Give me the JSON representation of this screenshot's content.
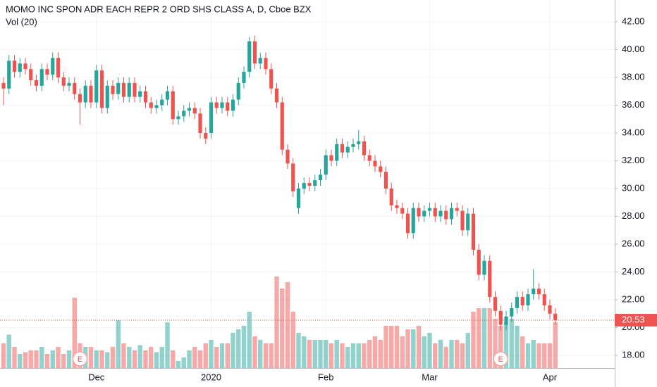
{
  "chart_data": {
    "type": "candlestick",
    "title": "MOMO INC SPON ADR EACH REPR 2 ORD SHS CLASS A, D, Cboe BZX",
    "subtitle": "Vol (20)",
    "categories": [
      null,
      null,
      null,
      null,
      null,
      null,
      null,
      null,
      null,
      null,
      null,
      null,
      null,
      null,
      null,
      null,
      null,
      "Dec",
      null,
      null,
      null,
      null,
      null,
      null,
      null,
      null,
      null,
      null,
      null,
      null,
      null,
      null,
      null,
      null,
      null,
      null,
      null,
      null,
      "2020",
      null,
      null,
      null,
      null,
      null,
      null,
      null,
      null,
      null,
      null,
      null,
      null,
      null,
      null,
      null,
      null,
      null,
      null,
      null,
      null,
      "Feb",
      null,
      null,
      null,
      null,
      null,
      null,
      null,
      null,
      null,
      null,
      null,
      null,
      null,
      null,
      null,
      null,
      null,
      null,
      "Mar",
      null,
      null,
      null,
      null,
      null,
      null,
      null,
      null,
      null,
      null,
      null,
      null,
      null,
      null,
      null,
      null,
      null,
      null,
      null,
      null,
      null,
      "Apr",
      null
    ],
    "open": [
      37.6,
      37.2,
      39.2,
      38.4,
      39.0,
      38.6,
      37.8,
      37.4,
      38.6,
      38.2,
      39.4,
      38.0,
      37.4,
      37.6,
      36.8,
      36.2,
      37.4,
      36.2,
      38.5,
      35.8,
      37.4,
      36.8,
      37.6,
      36.6,
      37.6,
      36.6,
      37.0,
      36.2,
      35.8,
      36.0,
      36.4,
      37.0,
      35.0,
      35.2,
      35.6,
      35.8,
      35.4,
      34.0,
      34.0,
      36.2,
      35.8,
      36.2,
      35.6,
      36.4,
      37.6,
      38.4,
      40.6,
      39.0,
      39.4,
      38.6,
      37.2,
      36.2,
      32.8,
      31.8,
      28.6,
      30.0,
      30.4,
      30.2,
      30.6,
      31.0,
      32.4,
      32.0,
      33.2,
      32.6,
      33.0,
      33.2,
      33.4,
      32.4,
      32.0,
      31.6,
      31.2,
      30.0,
      28.8,
      28.6,
      28.2,
      26.8,
      28.6,
      28.0,
      28.4,
      28.6,
      28.0,
      28.4,
      27.8,
      28.6,
      28.4,
      27.0,
      28.2,
      25.6,
      23.8,
      24.8,
      22.2,
      21.2,
      20.2,
      20.8,
      21.4,
      22.2,
      21.6,
      22.4,
      22.8,
      22.4,
      21.6,
      21.0
    ],
    "high": [
      38.0,
      39.6,
      39.6,
      39.4,
      39.4,
      39.0,
      38.2,
      39.0,
      39.0,
      39.8,
      39.8,
      38.4,
      38.0,
      38.0,
      37.2,
      37.8,
      37.8,
      38.9,
      38.9,
      37.8,
      37.8,
      38.0,
      38.0,
      38.0,
      38.0,
      37.4,
      37.4,
      36.6,
      36.4,
      36.8,
      37.4,
      37.4,
      35.6,
      36.0,
      36.2,
      36.2,
      35.8,
      34.4,
      36.6,
      36.6,
      36.6,
      36.6,
      36.8,
      38.0,
      38.8,
      40.9,
      41.0,
      39.8,
      39.8,
      39.0,
      37.6,
      36.6,
      33.2,
      32.2,
      30.4,
      30.8,
      30.8,
      31.0,
      31.4,
      32.8,
      32.8,
      33.6,
      33.6,
      33.4,
      33.6,
      34.2,
      33.8,
      32.8,
      32.4,
      32.0,
      31.6,
      30.4,
      29.2,
      29.0,
      28.6,
      29.0,
      29.0,
      28.8,
      29.0,
      29.0,
      28.8,
      28.8,
      29.0,
      29.0,
      28.8,
      28.6,
      28.6,
      26.0,
      25.2,
      25.2,
      22.6,
      21.6,
      21.2,
      21.8,
      22.6,
      22.6,
      22.8,
      24.2,
      23.2,
      22.8,
      22.0,
      21.4
    ],
    "low": [
      36.0,
      36.8,
      38.0,
      38.0,
      38.2,
      37.4,
      37.0,
      37.0,
      37.8,
      37.8,
      37.6,
      37.0,
      37.0,
      36.4,
      34.6,
      35.8,
      35.8,
      35.8,
      35.4,
      35.4,
      36.4,
      36.4,
      36.2,
      36.2,
      36.2,
      36.2,
      35.8,
      35.4,
      35.4,
      35.6,
      36.0,
      34.6,
      34.6,
      34.8,
      35.2,
      35.0,
      33.6,
      33.2,
      33.6,
      35.4,
      35.4,
      35.2,
      35.2,
      36.0,
      37.2,
      38.0,
      38.6,
      38.6,
      38.2,
      36.8,
      35.8,
      32.4,
      31.4,
      29.4,
      28.2,
      29.6,
      29.8,
      29.8,
      30.2,
      30.6,
      31.6,
      31.6,
      32.2,
      32.2,
      32.6,
      32.8,
      32.0,
      31.6,
      31.2,
      30.8,
      29.6,
      28.4,
      28.2,
      27.8,
      26.4,
      26.4,
      27.6,
      27.6,
      28.0,
      27.6,
      27.6,
      27.4,
      27.4,
      28.0,
      26.6,
      26.6,
      25.2,
      23.4,
      23.4,
      21.8,
      20.8,
      19.8,
      19.8,
      20.4,
      21.0,
      21.2,
      21.2,
      22.0,
      22.0,
      21.2,
      20.6,
      20.2
    ],
    "close": [
      37.2,
      39.2,
      38.4,
      39.0,
      38.6,
      37.8,
      37.4,
      38.6,
      38.2,
      39.4,
      38.0,
      37.4,
      37.6,
      36.8,
      36.2,
      37.4,
      36.2,
      38.5,
      35.8,
      37.4,
      36.8,
      37.6,
      36.6,
      37.6,
      36.6,
      37.0,
      36.2,
      35.8,
      36.0,
      36.4,
      37.0,
      35.0,
      35.2,
      35.6,
      35.8,
      35.4,
      34.0,
      33.6,
      36.2,
      35.8,
      36.2,
      35.6,
      36.4,
      37.6,
      38.4,
      40.6,
      39.0,
      39.4,
      38.6,
      37.2,
      36.2,
      32.8,
      31.8,
      29.8,
      30.0,
      30.4,
      30.2,
      30.6,
      31.0,
      32.4,
      32.0,
      33.2,
      32.6,
      33.0,
      33.2,
      33.4,
      32.4,
      32.0,
      31.6,
      31.2,
      30.0,
      28.8,
      28.6,
      28.2,
      26.8,
      28.6,
      28.0,
      28.4,
      28.6,
      28.0,
      28.4,
      27.8,
      28.6,
      28.4,
      27.0,
      28.2,
      25.6,
      23.8,
      24.8,
      22.2,
      21.2,
      20.2,
      20.8,
      21.4,
      22.2,
      21.6,
      22.4,
      22.8,
      22.4,
      21.6,
      21.0,
      20.53
    ],
    "volume": [
      7,
      9.5,
      6,
      4,
      4.5,
      5,
      5,
      6,
      4,
      5,
      6,
      4,
      5,
      20,
      7,
      6,
      6,
      5,
      5,
      4.5,
      6,
      13.6,
      7,
      6,
      5,
      6.5,
      5,
      6,
      4.5,
      6,
      13,
      5,
      2,
      3,
      5,
      6,
      5,
      7,
      8,
      6,
      7,
      7,
      10,
      11,
      12,
      16,
      9,
      8,
      7,
      7,
      26,
      22.6,
      24.4,
      16,
      10,
      9,
      8,
      8,
      8,
      8,
      7,
      8,
      7,
      6,
      7,
      7,
      7,
      8,
      9,
      8,
      12,
      12,
      12,
      9,
      11,
      11,
      12,
      9,
      10,
      7,
      8,
      6,
      8,
      8,
      7,
      10,
      16,
      17,
      17,
      17,
      14,
      12,
      13,
      14,
      12,
      9,
      7,
      8,
      7,
      7,
      7,
      13
    ],
    "up_color": "#26a69a",
    "down_color": "#ef5350",
    "last_price": {
      "value": 20.53,
      "label": "20.53"
    },
    "markers": [
      {
        "label": "E",
        "index": 14
      },
      {
        "label": "E",
        "index": 91
      }
    ],
    "ylim": [
      17.09,
      43.57
    ],
    "yticks": [
      {
        "value": 18,
        "label": "18.00"
      },
      {
        "value": 20,
        "label": "20.00"
      },
      {
        "value": 22,
        "label": "22.00"
      },
      {
        "value": 24,
        "label": "24.00"
      },
      {
        "value": 26,
        "label": "26.00"
      },
      {
        "value": 28,
        "label": "28.00"
      },
      {
        "value": 30,
        "label": "30.00"
      },
      {
        "value": 32,
        "label": "32.00"
      },
      {
        "value": 34,
        "label": "34.00"
      },
      {
        "value": 36,
        "label": "36.00"
      },
      {
        "value": 38,
        "label": "38.00"
      },
      {
        "value": 40,
        "label": "40.00"
      },
      {
        "value": 42,
        "label": "42.00"
      }
    ],
    "grid": true
  }
}
